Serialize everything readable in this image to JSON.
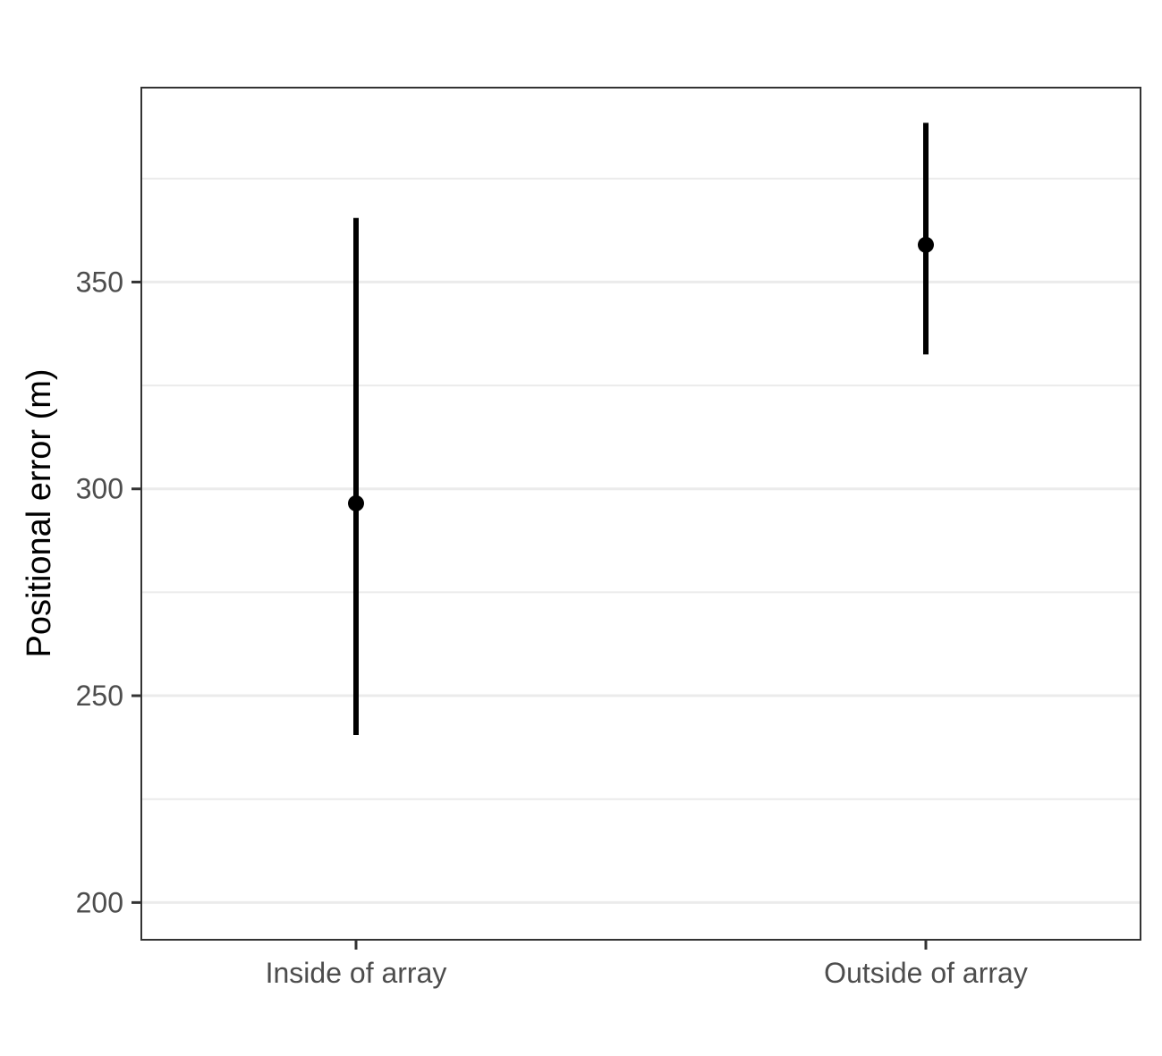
{
  "chart_data": {
    "type": "pointrange",
    "title": "",
    "xlabel": "",
    "ylabel": "Positional error (m)",
    "categories": [
      "Inside of array",
      "Outside of array"
    ],
    "series": [
      {
        "values": [
          296.5,
          359
        ],
        "lower": [
          240.5,
          332.5
        ],
        "upper": [
          365.5,
          388.5
        ]
      }
    ],
    "ylim": [
      191,
      397
    ],
    "y_ticks": [
      200,
      250,
      300,
      350
    ],
    "y_tick_labels": [
      "200",
      "250",
      "300",
      "350"
    ],
    "y_minor_ticks": [
      225,
      275,
      325,
      375
    ],
    "grid": true,
    "legend": "none",
    "colors": {
      "point": "#000000",
      "grid": "#ebebeb",
      "border": "#333333"
    }
  }
}
